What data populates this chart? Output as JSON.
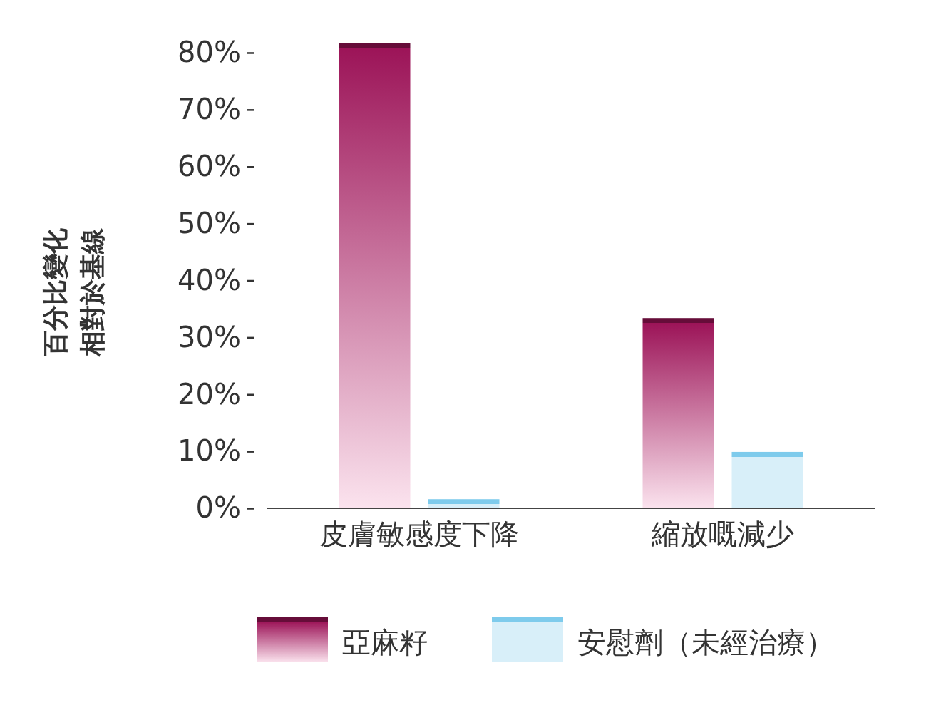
{
  "chart_data": {
    "type": "bar",
    "ylabel": "百分比變化相對於基線",
    "categories": [
      "皮膚敏感度下降",
      "縮放嘅減少"
    ],
    "series": [
      {
        "name": "亞麻籽",
        "color": "#9c1458",
        "values": [
          81.7,
          33.4
        ]
      },
      {
        "name": "安慰劑（未經治療）",
        "color": "#7ecbec",
        "values": [
          1.6,
          9.9
        ]
      }
    ],
    "ylim": [
      0,
      82
    ],
    "yticks": [
      {
        "value": 0,
        "label": "0%"
      },
      {
        "value": 10,
        "label": "10%"
      },
      {
        "value": 20,
        "label": "20%"
      },
      {
        "value": 30,
        "label": "30%"
      },
      {
        "value": 40,
        "label": "40%"
      },
      {
        "value": 50,
        "label": "50%"
      },
      {
        "value": 60,
        "label": "60%"
      },
      {
        "value": 70,
        "label": "70%"
      },
      {
        "value": 80,
        "label": "80%"
      }
    ],
    "grid": false,
    "legend": "bottom"
  }
}
